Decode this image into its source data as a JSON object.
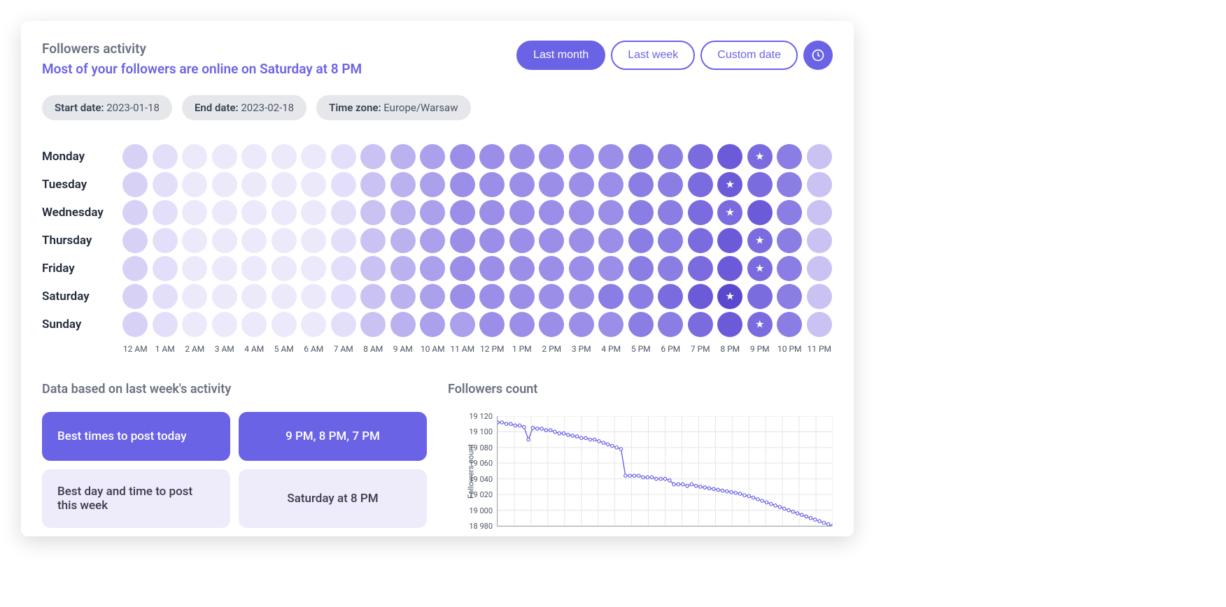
{
  "header": {
    "title": "Followers activity",
    "subtitle": "Most of your followers are online on Saturday at 8 PM"
  },
  "range_buttons": [
    {
      "label": "Last month",
      "active": true
    },
    {
      "label": "Last week",
      "active": false
    },
    {
      "label": "Custom date",
      "active": false
    }
  ],
  "chips": [
    {
      "label": "Start date:",
      "value": "2023-01-18"
    },
    {
      "label": "End date:",
      "value": "2023-02-18"
    },
    {
      "label": "Time zone:",
      "value": "Europe/Warsaw"
    }
  ],
  "heatmap": {
    "days": [
      "Monday",
      "Tuesday",
      "Wednesday",
      "Thursday",
      "Friday",
      "Saturday",
      "Sunday"
    ],
    "hours": [
      "12 AM",
      "1 AM",
      "2 AM",
      "3 AM",
      "4 AM",
      "5 AM",
      "6 AM",
      "7 AM",
      "8 AM",
      "9 AM",
      "10 AM",
      "11 AM",
      "12 PM",
      "1 PM",
      "2 PM",
      "3 PM",
      "4 PM",
      "5 PM",
      "6 PM",
      "7 PM",
      "8 PM",
      "9 PM",
      "10 PM",
      "11 PM"
    ],
    "colors": [
      "#ece9fb",
      "#e3dffa",
      "#d7d1f6",
      "#cac2f3",
      "#bab1ef",
      "#aaa0ec",
      "#9a8ee8",
      "#8a7de3",
      "#7a6cdf",
      "#6b5bd9",
      "#5a49ce"
    ],
    "intensity": [
      [
        2,
        1,
        0,
        0,
        0,
        0,
        0,
        1,
        3,
        4,
        5,
        6,
        6,
        6,
        6,
        6,
        6,
        7,
        7,
        8,
        9,
        8,
        7,
        3
      ],
      [
        2,
        1,
        0,
        0,
        0,
        0,
        0,
        1,
        3,
        4,
        5,
        6,
        6,
        6,
        6,
        6,
        6,
        7,
        7,
        8,
        9,
        8,
        7,
        3
      ],
      [
        2,
        1,
        0,
        0,
        0,
        0,
        0,
        1,
        3,
        4,
        5,
        6,
        6,
        6,
        6,
        6,
        6,
        7,
        7,
        8,
        8,
        9,
        7,
        3
      ],
      [
        2,
        1,
        0,
        0,
        0,
        0,
        0,
        1,
        3,
        4,
        5,
        6,
        6,
        6,
        6,
        6,
        6,
        7,
        7,
        8,
        9,
        8,
        7,
        3
      ],
      [
        2,
        1,
        0,
        0,
        0,
        0,
        0,
        1,
        3,
        4,
        5,
        6,
        6,
        6,
        6,
        6,
        6,
        7,
        7,
        8,
        9,
        8,
        7,
        3
      ],
      [
        2,
        1,
        0,
        0,
        0,
        0,
        0,
        1,
        3,
        4,
        5,
        6,
        6,
        6,
        6,
        6,
        7,
        7,
        8,
        9,
        10,
        8,
        7,
        3
      ],
      [
        2,
        1,
        0,
        0,
        0,
        0,
        0,
        1,
        3,
        4,
        5,
        5,
        6,
        6,
        6,
        6,
        6,
        7,
        7,
        8,
        9,
        8,
        7,
        3
      ]
    ],
    "stars": [
      {
        "day": 0,
        "hour": 21
      },
      {
        "day": 1,
        "hour": 20
      },
      {
        "day": 2,
        "hour": 20
      },
      {
        "day": 3,
        "hour": 21
      },
      {
        "day": 4,
        "hour": 21
      },
      {
        "day": 5,
        "hour": 20
      },
      {
        "day": 6,
        "hour": 21
      }
    ]
  },
  "bottom_left": {
    "title": "Data based on last week's activity",
    "rows": [
      {
        "left": "Best times to post today",
        "right": "9 PM, 8 PM, 7 PM",
        "style": "primary"
      },
      {
        "left": "Best day and time to post this week",
        "right": "Saturday at 8 PM",
        "style": "muted"
      }
    ]
  },
  "followers_chart": {
    "title": "Followers count",
    "ylabel": "Followers count",
    "ylim": [
      18980,
      19120
    ],
    "ytick_step": 20,
    "yticks": [
      "19 120",
      "19 100",
      "19 080",
      "19 060",
      "19 040",
      "19 020",
      "19 000",
      "18 980"
    ],
    "line_color": "#6b63e6",
    "grid_color": "#e5e5e5",
    "marker_fill": "#ffffff",
    "marker_radius": 2.2,
    "points": [
      19112,
      19112,
      19110,
      19110,
      19108,
      19108,
      19106,
      19090,
      19105,
      19104,
      19104,
      19102,
      19102,
      19100,
      19098,
      19098,
      19096,
      19095,
      19094,
      19092,
      19092,
      19090,
      19090,
      19088,
      19086,
      19084,
      19082,
      19080,
      19078,
      19044,
      19044,
      19044,
      19044,
      19042,
      19042,
      19042,
      19040,
      19040,
      19040,
      19038,
      19033,
      19033,
      19033,
      19031,
      19033,
      19031,
      19030,
      19029,
      19028,
      19027,
      19026,
      19025,
      19024,
      19023,
      19022,
      19021,
      19019,
      19018,
      19016,
      19014,
      19012,
      19010,
      19008,
      19006,
      19004,
      19002,
      19000,
      18998,
      18996,
      18994,
      18992,
      18990,
      18988,
      18986,
      18984,
      18982,
      18980
    ]
  },
  "accent_color": "#6b63e6"
}
